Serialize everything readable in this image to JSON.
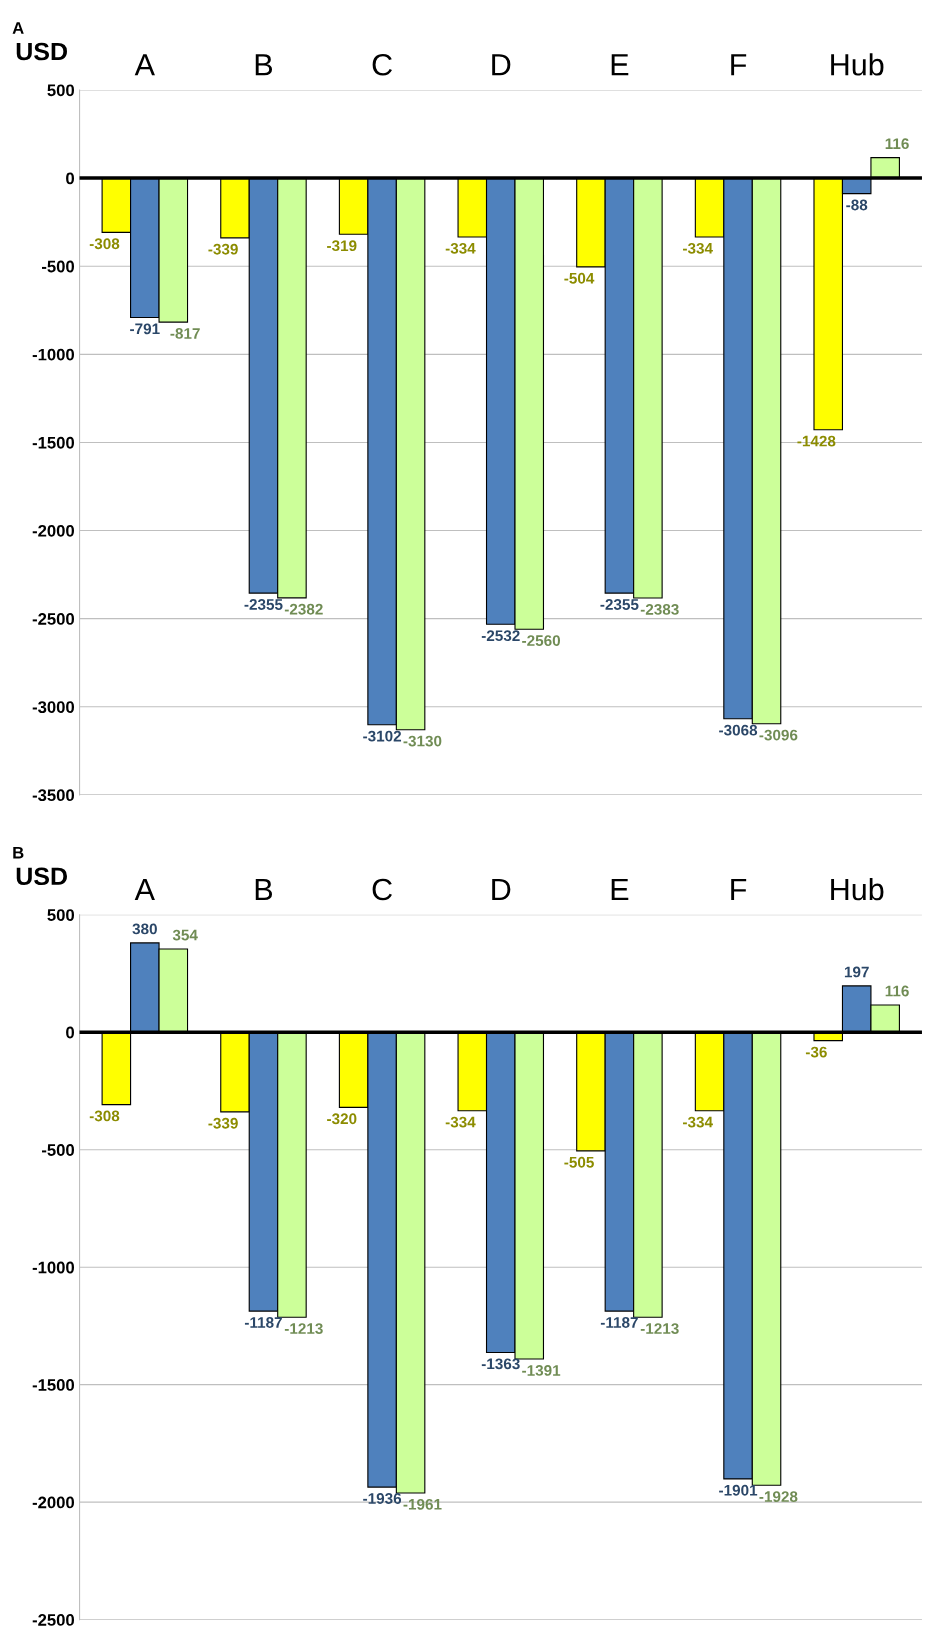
{
  "chart_data": [
    {
      "type": "bar",
      "title": "A",
      "ylabel": "USD",
      "categories": [
        "A",
        "B",
        "C",
        "D",
        "E",
        "F",
        "Hub"
      ],
      "series": [
        {
          "color": "#ffff00",
          "values": [
            -308,
            -339,
            -319,
            -334,
            -504,
            -334,
            -1428
          ]
        },
        {
          "color": "#4f81bd",
          "values": [
            -791,
            -2355,
            -3102,
            -2532,
            -2355,
            -3068,
            -88
          ]
        },
        {
          "color": "#ccff99",
          "values": [
            -817,
            -2382,
            -3130,
            -2560,
            -2383,
            -3096,
            116
          ]
        }
      ],
      "ylim": [
        -3500,
        500
      ],
      "yticks": [
        -3500,
        -3000,
        -2500,
        -2000,
        -1500,
        -1000,
        -500,
        0,
        500
      ],
      "grid": "y",
      "data_labels": true,
      "ref_lines": [
        {
          "axis": "y",
          "value": 0,
          "color": "#000000"
        }
      ]
    },
    {
      "type": "bar",
      "title": "B",
      "ylabel": "USD",
      "categories": [
        "A",
        "B",
        "C",
        "D",
        "E",
        "F",
        "Hub"
      ],
      "series": [
        {
          "color": "#ffff00",
          "values": [
            -308,
            -339,
            -320,
            -334,
            -505,
            -334,
            -36
          ]
        },
        {
          "color": "#4f81bd",
          "values": [
            380,
            -1187,
            -1936,
            -1363,
            -1187,
            -1901,
            197
          ]
        },
        {
          "color": "#ccff99",
          "values": [
            354,
            -1213,
            -1961,
            -1391,
            -1213,
            -1928,
            116
          ]
        }
      ],
      "ylim": [
        -2500,
        500
      ],
      "yticks": [
        -2500,
        -2000,
        -1500,
        -1000,
        -500,
        0,
        500
      ],
      "grid": "y",
      "data_labels": true,
      "ref_lines": [
        {
          "axis": "y",
          "value": 0,
          "color": "#000000"
        }
      ]
    }
  ]
}
